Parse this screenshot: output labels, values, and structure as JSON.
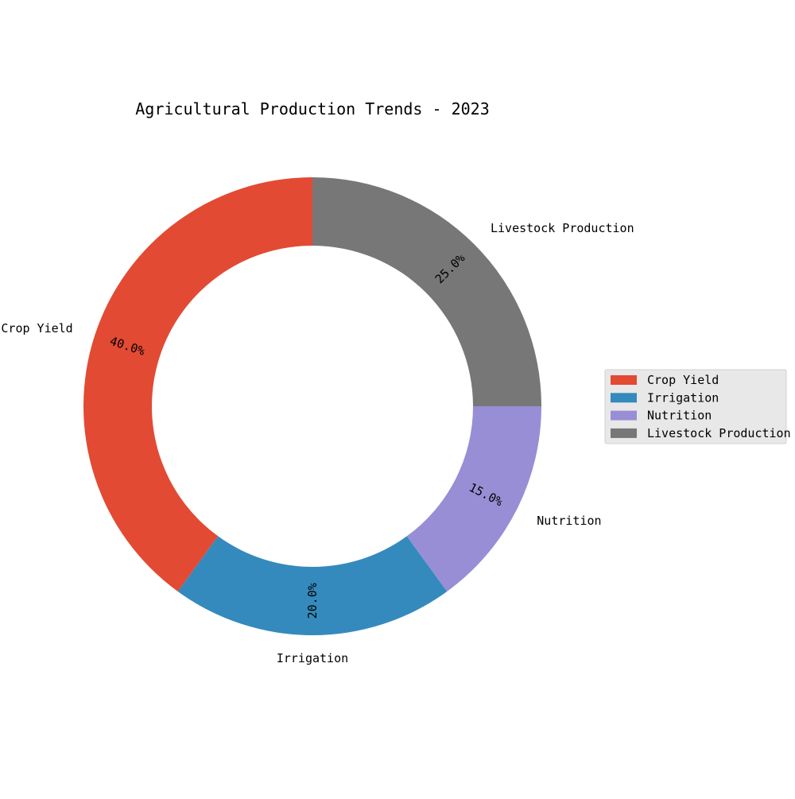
{
  "chart_data": {
    "type": "pie",
    "title": "Agricultural Production Trends - 2023",
    "categories": [
      "Crop Yield",
      "Irrigation",
      "Nutrition",
      "Livestock Production"
    ],
    "values": [
      40,
      20,
      15,
      25
    ],
    "percent_labels": [
      "40.0%",
      "20.0%",
      "15.0%",
      "25.0%"
    ],
    "colors": [
      "#E24A33",
      "#348ABD",
      "#988ED5",
      "#777777"
    ],
    "donut": true,
    "start_angle_deg": 90,
    "direction": "counterclockwise",
    "legend": {
      "placement": "right",
      "entries": [
        "Crop Yield",
        "Irrigation",
        "Nutrition",
        "Livestock Production"
      ]
    }
  }
}
